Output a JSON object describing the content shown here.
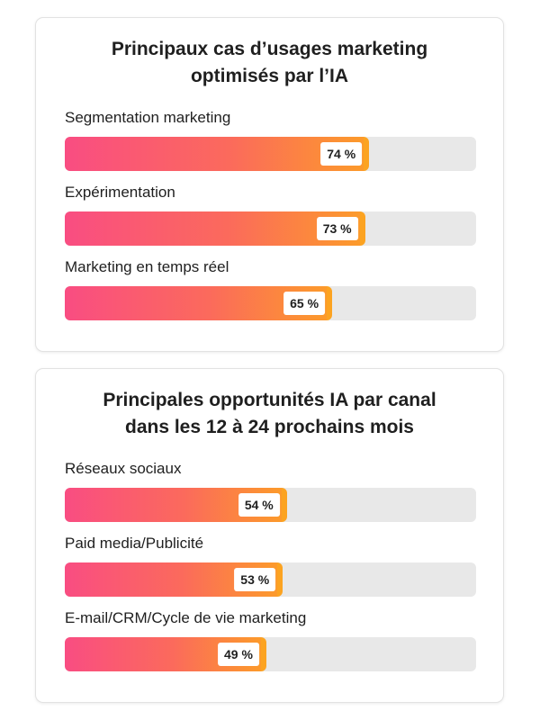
{
  "charts": [
    {
      "title_lines": [
        "Principaux cas d’usages marketing",
        "optimisés par l’IA"
      ],
      "rows": [
        {
          "label": "Segmentation marketing",
          "value": 74,
          "value_label": "74 %"
        },
        {
          "label": "Expérimentation",
          "value": 73,
          "value_label": "73 %"
        },
        {
          "label": "Marketing en temps réel",
          "value": 65,
          "value_label": "65 %"
        }
      ]
    },
    {
      "title_lines": [
        "Principales opportunités IA par canal",
        "dans les 12 à 24 prochains mois"
      ],
      "rows": [
        {
          "label": "Réseaux sociaux",
          "value": 54,
          "value_label": "54 %"
        },
        {
          "label": "Paid media/Publicité",
          "value": 53,
          "value_label": "53 %"
        },
        {
          "label": "E-mail/CRM/Cycle de vie marketing",
          "value": 49,
          "value_label": "49 %"
        }
      ]
    }
  ],
  "chart_data": [
    {
      "type": "bar",
      "orientation": "horizontal",
      "title": "Principaux cas d’usages marketing optimisés par l’IA",
      "categories": [
        "Segmentation marketing",
        "Expérimentation",
        "Marketing en temps réel"
      ],
      "values": [
        74,
        73,
        65
      ],
      "unit": "%",
      "xlim": [
        0,
        100
      ],
      "grid": false
    },
    {
      "type": "bar",
      "orientation": "horizontal",
      "title": "Principales opportunités IA par canal dans les 12 à 24 prochains mois",
      "categories": [
        "Réseaux sociaux",
        "Paid media/Publicité",
        "E-mail/CRM/Cycle de vie marketing"
      ],
      "values": [
        54,
        53,
        49
      ],
      "unit": "%",
      "xlim": [
        0,
        100
      ],
      "grid": false
    }
  ],
  "colors": {
    "bar_gradient_start": "#f94d82",
    "bar_gradient_mid": "#fb6a5c",
    "bar_gradient_end": "#fc9a2b",
    "bar_edge": "#fca321",
    "track": "#e8e8e8"
  }
}
